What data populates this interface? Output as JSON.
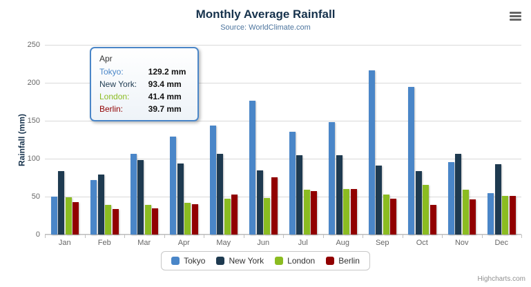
{
  "header": {
    "title": "Monthly Average Rainfall",
    "subtitle": "Source: WorldClimate.com",
    "credits": "Highcharts.com"
  },
  "chart_data": {
    "type": "bar",
    "title": "Monthly Average Rainfall",
    "subtitle": "Source: WorldClimate.com",
    "categories": [
      "Jan",
      "Feb",
      "Mar",
      "Apr",
      "May",
      "Jun",
      "Jul",
      "Aug",
      "Sep",
      "Oct",
      "Nov",
      "Dec"
    ],
    "series": [
      {
        "name": "Tokyo",
        "color": "#4a86c8",
        "values": [
          49.9,
          71.5,
          106.4,
          129.2,
          144.0,
          176.0,
          135.6,
          148.5,
          216.4,
          194.1,
          95.6,
          54.4
        ]
      },
      {
        "name": "New York",
        "color": "#1e3a50",
        "values": [
          83.6,
          78.8,
          98.5,
          93.4,
          106.0,
          84.5,
          105.0,
          104.3,
          91.2,
          83.5,
          106.6,
          92.3
        ]
      },
      {
        "name": "London",
        "color": "#8bbc21",
        "values": [
          48.9,
          38.8,
          39.3,
          41.4,
          47.0,
          48.3,
          59.0,
          59.6,
          52.4,
          65.2,
          59.3,
          51.2
        ]
      },
      {
        "name": "Berlin",
        "color": "#910000",
        "values": [
          42.4,
          33.2,
          34.5,
          39.7,
          52.6,
          75.5,
          57.4,
          60.4,
          47.6,
          39.1,
          46.8,
          51.1
        ]
      }
    ],
    "xlabel": "",
    "ylabel": "Rainfall (mm)",
    "ylim": [
      0,
      250
    ],
    "yticks": [
      0,
      50,
      100,
      150,
      200,
      250
    ],
    "grid": true,
    "legend_position": "bottom"
  },
  "tooltip": {
    "category": "Apr",
    "rows": [
      {
        "name": "Tokyo:",
        "value": "129.2 mm",
        "color": "#4a86c8"
      },
      {
        "name": "New York:",
        "value": "93.4 mm",
        "color": "#1e3a50"
      },
      {
        "name": "London:",
        "value": "41.4 mm",
        "color": "#8bbc21"
      },
      {
        "name": "Berlin:",
        "value": "39.7 mm",
        "color": "#910000"
      }
    ]
  }
}
